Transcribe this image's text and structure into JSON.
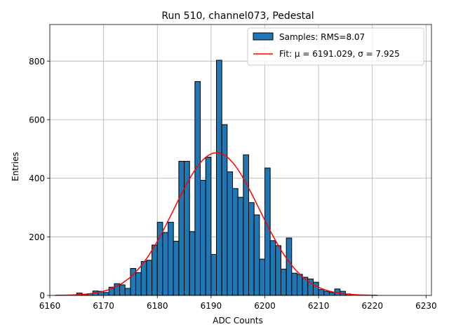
{
  "chart_data": {
    "type": "bar",
    "title": "Run 510, channel073, Pedestal",
    "xlabel": "ADC Counts",
    "ylabel": "Entries",
    "xlim": [
      6160,
      6231
    ],
    "ylim": [
      0,
      925
    ],
    "xticks": [
      6160,
      6170,
      6180,
      6190,
      6200,
      6210,
      6220,
      6230
    ],
    "yticks": [
      0,
      200,
      400,
      600,
      800
    ],
    "grid": true,
    "legend_position": "top-right",
    "histogram": {
      "name": "Samples: RMS=8.07",
      "color": "#1f77b4",
      "bin_edges": [
        6165,
        6166,
        6167,
        6168,
        6169,
        6170,
        6171,
        6172,
        6173,
        6174,
        6175,
        6176,
        6177,
        6178,
        6179,
        6180,
        6181,
        6182,
        6183,
        6184,
        6185,
        6186,
        6187,
        6188,
        6189,
        6190,
        6191,
        6192,
        6193,
        6194,
        6195,
        6196,
        6197,
        6198,
        6199,
        6200,
        6201,
        6202,
        6203,
        6204,
        6205,
        6206,
        6207,
        6208,
        6209,
        6210,
        6211,
        6212,
        6213,
        6214,
        6215,
        6216
      ],
      "counts": [
        8,
        4,
        6,
        15,
        14,
        10,
        28,
        40,
        36,
        24,
        92,
        78,
        116,
        120,
        172,
        250,
        215,
        250,
        185,
        458,
        458,
        218,
        730,
        393,
        472,
        140,
        803,
        583,
        422,
        365,
        335,
        480,
        317,
        275,
        124,
        435,
        187,
        170,
        90,
        196,
        76,
        72,
        62,
        56,
        45,
        20,
        14,
        10,
        22,
        14,
        5
      ]
    },
    "fit": {
      "name": "Fit: μ = 6191.029, σ = 7.925",
      "color": "#ff0000",
      "mu": 6191.029,
      "sigma": 7.925,
      "amplitude": 487,
      "x_range": [
        6161,
        6221
      ]
    }
  }
}
